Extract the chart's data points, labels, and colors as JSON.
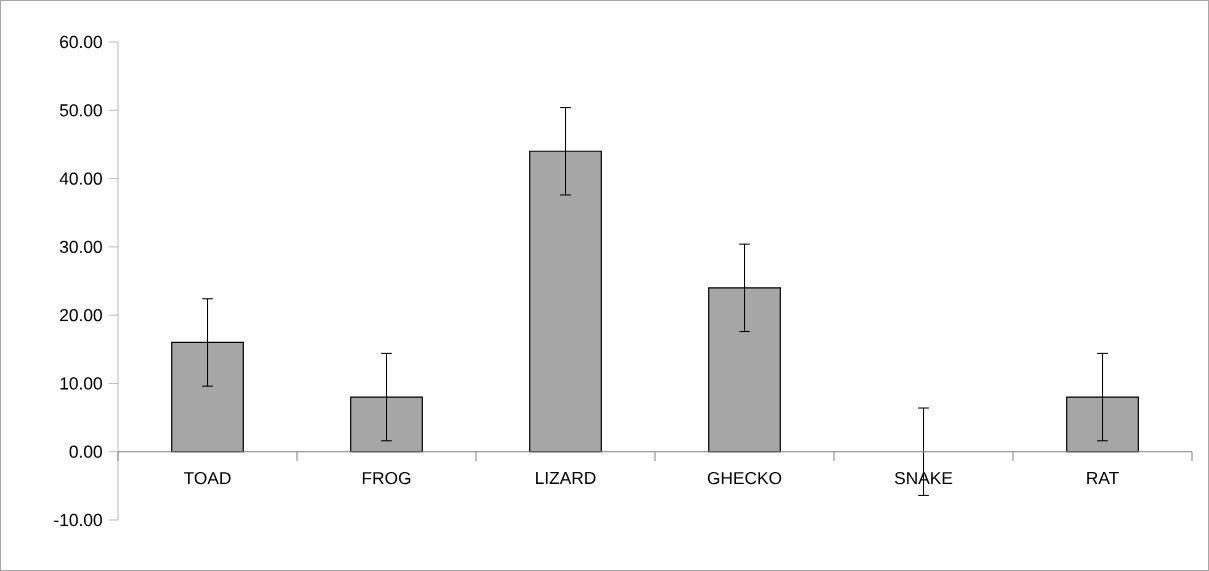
{
  "chart_data": {
    "type": "bar",
    "categories": [
      "TOAD",
      "FROG",
      "LIZARD",
      "GHECKO",
      "SNAKE",
      "RAT"
    ],
    "values": [
      16,
      8,
      44,
      24,
      0,
      8
    ],
    "errors": [
      6.4,
      6.4,
      6.4,
      6.4,
      6.4,
      6.4
    ],
    "color": "#a6a6a6",
    "ylim": [
      -10,
      60
    ],
    "yticks": [
      {
        "value": -10,
        "label": "-10.00"
      },
      {
        "value": 0,
        "label": "0.00"
      },
      {
        "value": 10,
        "label": "10.00"
      },
      {
        "value": 20,
        "label": "20.00"
      },
      {
        "value": 30,
        "label": "30.00"
      },
      {
        "value": 40,
        "label": "40.00"
      },
      {
        "value": 50,
        "label": "50.00"
      },
      {
        "value": 60,
        "label": "60.00"
      }
    ],
    "grid": false
  }
}
